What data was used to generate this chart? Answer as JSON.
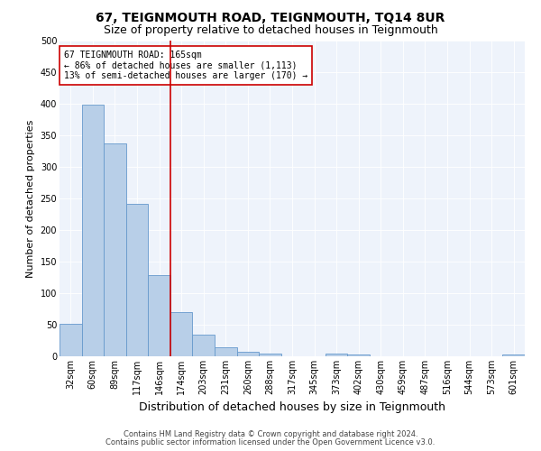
{
  "title": "67, TEIGNMOUTH ROAD, TEIGNMOUTH, TQ14 8UR",
  "subtitle": "Size of property relative to detached houses in Teignmouth",
  "xlabel": "Distribution of detached houses by size in Teignmouth",
  "ylabel": "Number of detached properties",
  "categories": [
    "32sqm",
    "60sqm",
    "89sqm",
    "117sqm",
    "146sqm",
    "174sqm",
    "203sqm",
    "231sqm",
    "260sqm",
    "288sqm",
    "317sqm",
    "345sqm",
    "373sqm",
    "402sqm",
    "430sqm",
    "459sqm",
    "487sqm",
    "516sqm",
    "544sqm",
    "573sqm",
    "601sqm"
  ],
  "values": [
    52,
    399,
    337,
    241,
    128,
    70,
    35,
    15,
    7,
    5,
    0,
    0,
    5,
    3,
    0,
    0,
    0,
    0,
    0,
    0,
    3
  ],
  "bar_color": "#b8cfe8",
  "bar_edge_color": "#6699cc",
  "vline_x_index": 5,
  "vline_color": "#cc0000",
  "annotation_text": "67 TEIGNMOUTH ROAD: 165sqm\n← 86% of detached houses are smaller (1,113)\n13% of semi-detached houses are larger (170) →",
  "annotation_box_color": "#ffffff",
  "annotation_box_edge": "#cc0000",
  "ylim": [
    0,
    500
  ],
  "yticks": [
    0,
    50,
    100,
    150,
    200,
    250,
    300,
    350,
    400,
    450,
    500
  ],
  "footer_line1": "Contains HM Land Registry data © Crown copyright and database right 2024.",
  "footer_line2": "Contains public sector information licensed under the Open Government Licence v3.0.",
  "bg_color": "#e8eef8",
  "plot_bg_color": "#eef3fb",
  "title_fontsize": 10,
  "subtitle_fontsize": 9,
  "tick_fontsize": 7,
  "xlabel_fontsize": 9,
  "ylabel_fontsize": 8,
  "annotation_fontsize": 7,
  "footer_fontsize": 6
}
